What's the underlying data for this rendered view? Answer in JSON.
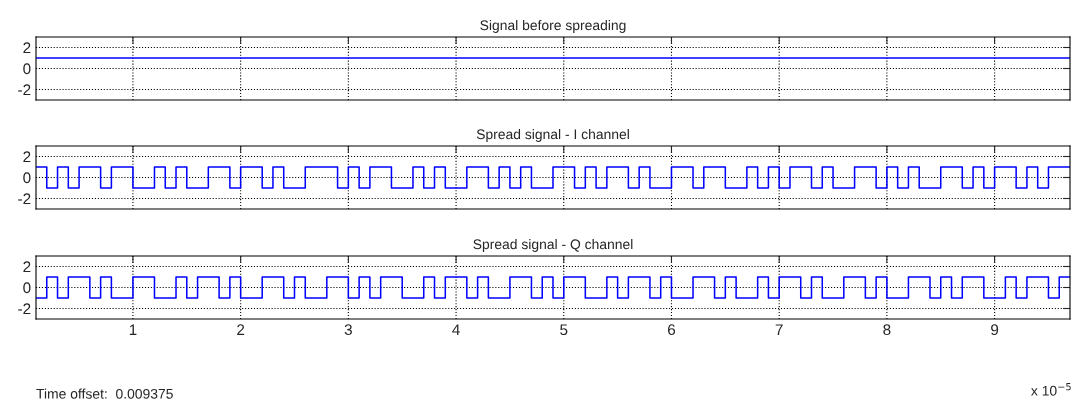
{
  "chart_data": [
    {
      "type": "line",
      "title": "Signal before spreading",
      "xlim": [
        0.1,
        9.7
      ],
      "ylim": [
        -3,
        3
      ],
      "xticks": [
        1,
        2,
        3,
        4,
        5,
        6,
        7,
        8,
        9
      ],
      "yticks": [
        -2,
        0,
        2
      ],
      "grid": true,
      "tick_labels": "y",
      "line_style": "solid",
      "series": [
        {
          "color": "#0000ff",
          "x": [
            0.1,
            9.7
          ],
          "values": [
            1,
            1
          ]
        }
      ]
    },
    {
      "type": "step",
      "title": "Spread signal - I channel",
      "xlim": [
        0.1,
        9.7
      ],
      "ylim": [
        -3,
        3
      ],
      "xticks": [
        1,
        2,
        3,
        4,
        5,
        6,
        7,
        8,
        9
      ],
      "yticks": [
        -2,
        0,
        2
      ],
      "grid": true,
      "tick_labels": "y",
      "line_style": "solid",
      "x": [
        0.1,
        0.2,
        0.3,
        0.4,
        0.5,
        0.6,
        0.7,
        0.8,
        0.9,
        1.0,
        1.1,
        1.2,
        1.3,
        1.4,
        1.5,
        1.6,
        1.7,
        1.8,
        1.9,
        2.0,
        2.1,
        2.2,
        2.3,
        2.4,
        2.5,
        2.6,
        2.7,
        2.8,
        2.9,
        3.0,
        3.1,
        3.2,
        3.3,
        3.4,
        3.5,
        3.6,
        3.7,
        3.8,
        3.9,
        4.0,
        4.1,
        4.2,
        4.3,
        4.4,
        4.5,
        4.6,
        4.7,
        4.8,
        4.9,
        5.0,
        5.1,
        5.2,
        5.3,
        5.4,
        5.5,
        5.6,
        5.7,
        5.8,
        5.9,
        6.0,
        6.1,
        6.2,
        6.3,
        6.4,
        6.5,
        6.6,
        6.7,
        6.8,
        6.9,
        7.0,
        7.1,
        7.2,
        7.3,
        7.4,
        7.5,
        7.6,
        7.7,
        7.8,
        7.9,
        8.0,
        8.1,
        8.2,
        8.3,
        8.4,
        8.5,
        8.6,
        8.7,
        8.8,
        8.9,
        9.0,
        9.1,
        9.2,
        9.3,
        9.4,
        9.5,
        9.6,
        9.7
      ],
      "series": [
        {
          "color": "#0000ff",
          "values": [
            1,
            -1,
            1,
            -1,
            1,
            1,
            -1,
            1,
            1,
            -1,
            -1,
            1,
            -1,
            1,
            -1,
            -1,
            1,
            1,
            -1,
            1,
            1,
            -1,
            1,
            -1,
            -1,
            1,
            1,
            1,
            -1,
            1,
            -1,
            1,
            1,
            -1,
            -1,
            1,
            -1,
            1,
            -1,
            -1,
            1,
            1,
            -1,
            1,
            -1,
            1,
            -1,
            -1,
            1,
            1,
            -1,
            1,
            -1,
            1,
            1,
            -1,
            1,
            -1,
            -1,
            1,
            1,
            -1,
            1,
            1,
            -1,
            -1,
            1,
            -1,
            1,
            -1,
            1,
            1,
            -1,
            1,
            -1,
            -1,
            1,
            1,
            -1,
            1,
            -1,
            1,
            -1,
            -1,
            1,
            1,
            -1,
            1,
            -1,
            1,
            1,
            -1,
            1,
            -1,
            1,
            1,
            1
          ]
        }
      ]
    },
    {
      "type": "step",
      "title": "Spread signal - Q channel",
      "xlim": [
        0.1,
        9.7
      ],
      "ylim": [
        -3,
        3
      ],
      "xticks": [
        1,
        2,
        3,
        4,
        5,
        6,
        7,
        8,
        9
      ],
      "yticks": [
        -2,
        0,
        2
      ],
      "grid": true,
      "line_style": "solid",
      "x": [
        0.1,
        0.2,
        0.3,
        0.4,
        0.5,
        0.6,
        0.7,
        0.8,
        0.9,
        1.0,
        1.1,
        1.2,
        1.3,
        1.4,
        1.5,
        1.6,
        1.7,
        1.8,
        1.9,
        2.0,
        2.1,
        2.2,
        2.3,
        2.4,
        2.5,
        2.6,
        2.7,
        2.8,
        2.9,
        3.0,
        3.1,
        3.2,
        3.3,
        3.4,
        3.5,
        3.6,
        3.7,
        3.8,
        3.9,
        4.0,
        4.1,
        4.2,
        4.3,
        4.4,
        4.5,
        4.6,
        4.7,
        4.8,
        4.9,
        5.0,
        5.1,
        5.2,
        5.3,
        5.4,
        5.5,
        5.6,
        5.7,
        5.8,
        5.9,
        6.0,
        6.1,
        6.2,
        6.3,
        6.4,
        6.5,
        6.6,
        6.7,
        6.8,
        6.9,
        7.0,
        7.1,
        7.2,
        7.3,
        7.4,
        7.5,
        7.6,
        7.7,
        7.8,
        7.9,
        8.0,
        8.1,
        8.2,
        8.3,
        8.4,
        8.5,
        8.6,
        8.7,
        8.8,
        8.9,
        9.0,
        9.1,
        9.2,
        9.3,
        9.4,
        9.5,
        9.6,
        9.7
      ],
      "series": [
        {
          "color": "#0000ff",
          "values": [
            -1,
            1,
            -1,
            1,
            1,
            -1,
            1,
            -1,
            -1,
            1,
            1,
            -1,
            -1,
            1,
            -1,
            1,
            1,
            -1,
            1,
            -1,
            -1,
            1,
            1,
            -1,
            1,
            -1,
            -1,
            1,
            1,
            -1,
            1,
            -1,
            1,
            1,
            -1,
            -1,
            1,
            -1,
            1,
            1,
            -1,
            1,
            -1,
            -1,
            1,
            1,
            -1,
            1,
            -1,
            1,
            1,
            -1,
            -1,
            1,
            -1,
            1,
            1,
            -1,
            1,
            -1,
            -1,
            1,
            1,
            -1,
            1,
            -1,
            -1,
            1,
            -1,
            1,
            1,
            -1,
            1,
            -1,
            -1,
            1,
            1,
            -1,
            1,
            -1,
            -1,
            1,
            1,
            -1,
            1,
            -1,
            1,
            1,
            -1,
            -1,
            1,
            -1,
            1,
            1,
            -1,
            1,
            1
          ]
        }
      ],
      "annotations": [
        "Time offset:  0.009375",
        "x 10$^{−5}$"
      ]
    }
  ]
}
